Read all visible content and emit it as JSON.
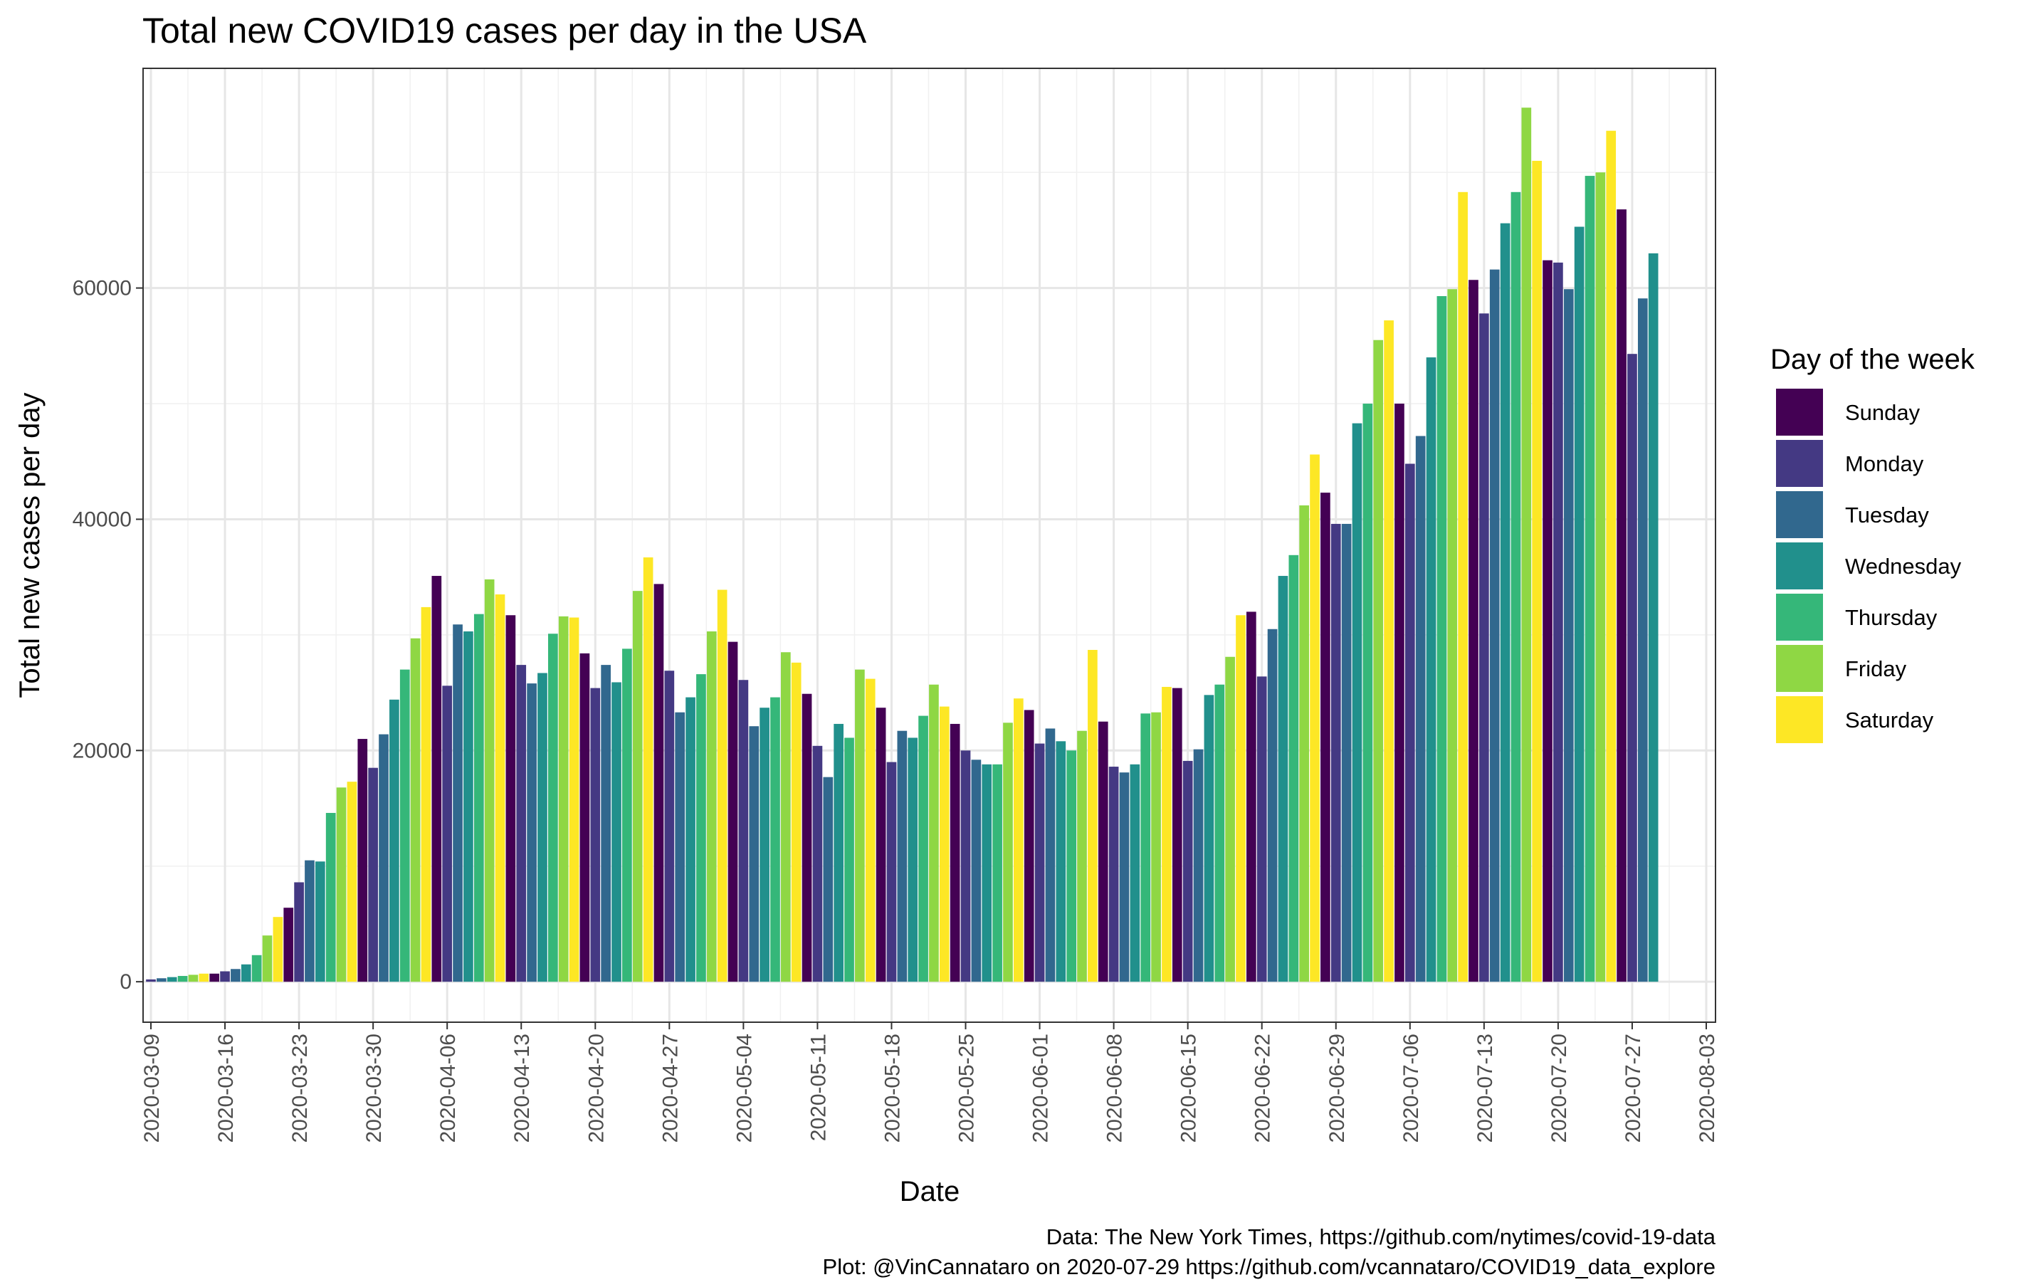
{
  "chart_data": {
    "type": "bar",
    "title": "Total new COVID19 cases per day in the USA",
    "xlabel": "Date",
    "ylabel": "Total new cases per day",
    "ylim": [
      -3500,
      79000
    ],
    "yticks": [
      0,
      20000,
      40000,
      60000
    ],
    "xticks": [
      "2020-03-09",
      "2020-03-16",
      "2020-03-23",
      "2020-03-30",
      "2020-04-06",
      "2020-04-13",
      "2020-04-20",
      "2020-04-27",
      "2020-05-04",
      "2020-05-11",
      "2020-05-18",
      "2020-05-25",
      "2020-06-01",
      "2020-06-08",
      "2020-06-15",
      "2020-06-22",
      "2020-06-29",
      "2020-07-06",
      "2020-07-13",
      "2020-07-20",
      "2020-07-27",
      "2020-08-03"
    ],
    "grid": true,
    "legend": {
      "title": "Day of the week",
      "placement": "right",
      "entries": [
        "Sunday",
        "Monday",
        "Tuesday",
        "Wednesday",
        "Thursday",
        "Friday",
        "Saturday"
      ],
      "colors": [
        "#440154",
        "#443983",
        "#31688E",
        "#21908C",
        "#35B779",
        "#8FD744",
        "#FDE725"
      ]
    },
    "start_date": "2020-03-09",
    "weekday_of_first": "Monday",
    "values": [
      200,
      300,
      400,
      500,
      600,
      700,
      700,
      900,
      1100,
      1500,
      2300,
      4000,
      5600,
      6400,
      8600,
      10500,
      10400,
      14600,
      16800,
      17300,
      21000,
      18500,
      21400,
      24400,
      27000,
      29700,
      32400,
      35100,
      25600,
      30900,
      30300,
      31800,
      34800,
      33500,
      31700,
      27400,
      25800,
      26700,
      30100,
      31600,
      31500,
      28400,
      25400,
      27400,
      25900,
      28800,
      33800,
      36700,
      34400,
      26900,
      23300,
      24600,
      26600,
      30300,
      33900,
      29400,
      26100,
      22100,
      23700,
      24600,
      28500,
      27600,
      24900,
      20400,
      17700,
      22300,
      21100,
      27000,
      26200,
      23700,
      19000,
      21700,
      21100,
      23000,
      25700,
      23800,
      22300,
      20000,
      19200,
      18800,
      18800,
      22400,
      24500,
      23500,
      20600,
      21900,
      20800,
      20000,
      21700,
      28700,
      22500,
      18600,
      18100,
      18800,
      23200,
      23300,
      25500,
      25400,
      19100,
      20100,
      24800,
      25700,
      28100,
      31700,
      32000,
      26400,
      30500,
      35100,
      36900,
      41200,
      45600,
      42300,
      39600,
      39600,
      48300,
      50000,
      55500,
      57200,
      50000,
      44800,
      47200,
      54000,
      59300,
      59900,
      68300,
      60700,
      57800,
      61600,
      65600,
      68300,
      75600,
      71000,
      62400,
      62200,
      59900,
      65300,
      69700,
      70000,
      73600,
      66800,
      54300,
      59100,
      63000
    ]
  },
  "caption": {
    "line1": "Data: The New York Times, https://github.com/nytimes/covid-19-data",
    "line2": "Plot: @VinCannataro on 2020-07-29 https://github.com/vcannataro/COVID19_data_explore"
  }
}
